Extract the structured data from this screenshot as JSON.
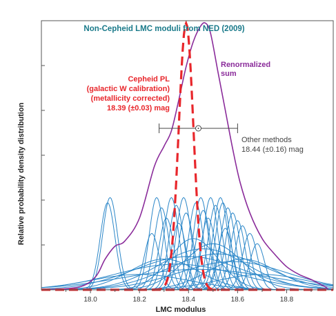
{
  "chart_data": {
    "type": "line",
    "title": "Non-Cepheid LMC moduli from NED (2009)",
    "xlabel": "LMC modulus",
    "ylabel": "Relative probability density distribution",
    "xlim": [
      17.8,
      18.99
    ],
    "ylim": [
      0,
      1.05
    ],
    "x_ticks": [
      "18.0",
      "18.2",
      "18.4",
      "18.6",
      "18.8"
    ],
    "x_tick_values": [
      18.0,
      18.2,
      18.4,
      18.6,
      18.8
    ],
    "y_tick_count": 5,
    "grid": false,
    "colors": {
      "title": "#1a7a8a",
      "individual": "#2a86c8",
      "renormalized_sum": "#8a2b9a",
      "cepheid": "#e8262b",
      "other_methods": "#444444",
      "axes": "#555555"
    },
    "individual_sigma": 0.03,
    "individual_gaussians": [
      {
        "mu": 18.08,
        "amp": 0.36
      },
      {
        "mu": 18.07,
        "amp": 0.34
      },
      {
        "mu": 18.27,
        "amp": 0.36
      },
      {
        "mu": 18.29,
        "amp": 0.32
      },
      {
        "mu": 18.33,
        "amp": 0.36
      },
      {
        "mu": 18.35,
        "amp": 0.33
      },
      {
        "mu": 18.38,
        "amp": 0.36
      },
      {
        "mu": 18.39,
        "amp": 0.3
      },
      {
        "mu": 18.43,
        "amp": 0.34
      },
      {
        "mu": 18.45,
        "amp": 0.36
      },
      {
        "mu": 18.46,
        "amp": 0.31
      },
      {
        "mu": 18.49,
        "amp": 0.36
      },
      {
        "mu": 18.51,
        "amp": 0.33
      },
      {
        "mu": 18.53,
        "amp": 0.36
      },
      {
        "mu": 18.54,
        "amp": 0.34
      },
      {
        "mu": 18.56,
        "amp": 0.32
      },
      {
        "mu": 18.58,
        "amp": 0.3
      },
      {
        "mu": 18.6,
        "amp": 0.27
      },
      {
        "mu": 18.62,
        "amp": 0.25
      },
      {
        "mu": 18.65,
        "amp": 0.22
      },
      {
        "mu": 18.68,
        "amp": 0.18
      },
      {
        "mu": 18.31,
        "amp": 0.28
      },
      {
        "mu": 18.36,
        "amp": 0.26
      },
      {
        "mu": 18.48,
        "amp": 0.28
      },
      {
        "mu": 18.55,
        "amp": 0.24
      },
      {
        "mu": 18.25,
        "amp": 0.22
      }
    ],
    "broad_gaussians": [
      {
        "mu": 18.46,
        "sigma": 0.18,
        "amp": 0.16
      },
      {
        "mu": 18.4,
        "sigma": 0.22,
        "amp": 0.13
      },
      {
        "mu": 18.52,
        "sigma": 0.2,
        "amp": 0.14
      },
      {
        "mu": 18.35,
        "sigma": 0.25,
        "amp": 0.1
      },
      {
        "mu": 18.58,
        "sigma": 0.22,
        "amp": 0.11
      },
      {
        "mu": 18.44,
        "sigma": 0.3,
        "amp": 0.08
      },
      {
        "mu": 18.5,
        "sigma": 0.12,
        "amp": 0.18
      },
      {
        "mu": 18.3,
        "sigma": 0.14,
        "amp": 0.12
      },
      {
        "mu": 18.62,
        "sigma": 0.14,
        "amp": 0.12
      },
      {
        "mu": 18.42,
        "sigma": 0.1,
        "amp": 0.2
      },
      {
        "mu": 18.2,
        "sigma": 0.2,
        "amp": 0.06
      },
      {
        "mu": 18.7,
        "sigma": 0.18,
        "amp": 0.06
      }
    ],
    "renormalized_sum": {
      "name": "Renormalized sum",
      "x": [
        17.8,
        17.95,
        18.02,
        18.06,
        18.1,
        18.14,
        18.2,
        18.26,
        18.3,
        18.33,
        18.36,
        18.39,
        18.42,
        18.45,
        18.47,
        18.49,
        18.52,
        18.55,
        18.58,
        18.61,
        18.65,
        18.7,
        18.75,
        18.8,
        18.85,
        18.9,
        18.94,
        18.96,
        18.97
      ],
      "y": [
        0.0,
        0.01,
        0.05,
        0.12,
        0.17,
        0.19,
        0.28,
        0.48,
        0.56,
        0.62,
        0.74,
        0.87,
        0.97,
        1.03,
        1.04,
        1.0,
        0.85,
        0.7,
        0.55,
        0.42,
        0.3,
        0.2,
        0.14,
        0.09,
        0.06,
        0.04,
        0.02,
        0.01,
        0.0
      ]
    },
    "cepheid_pl": {
      "mu": 18.39,
      "err": 0.03,
      "peak": 1.04,
      "label_lines": [
        "Cepheid PL",
        "(galactic W calibration)",
        "(metallicity corrected)",
        "18.39 (±0.03) mag"
      ]
    },
    "other_methods": {
      "mu": 18.44,
      "err": 0.16,
      "y": 0.63,
      "label_lines": [
        "Other methods",
        "18.44 (±0.16) mag"
      ]
    }
  }
}
